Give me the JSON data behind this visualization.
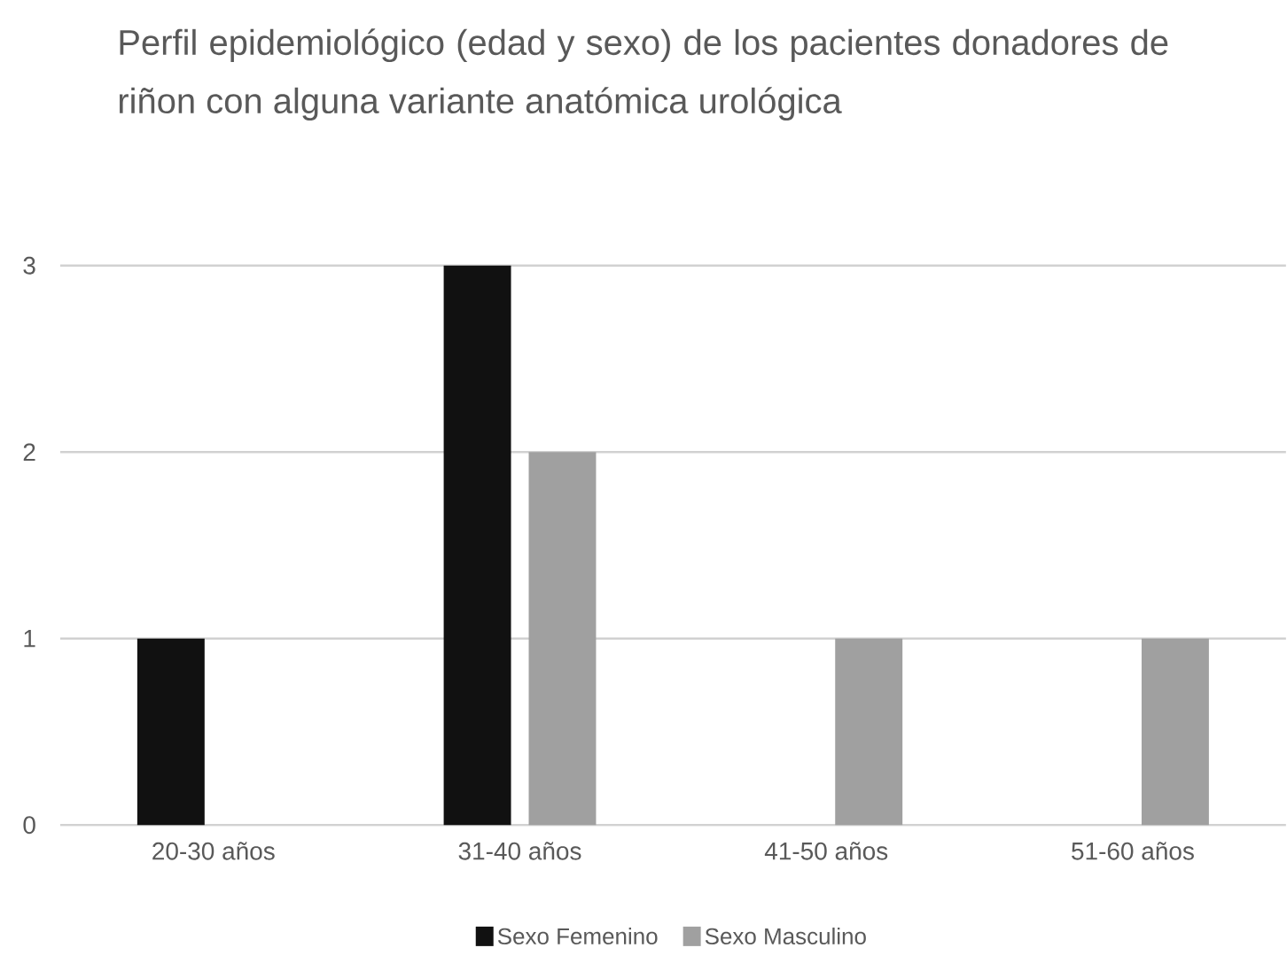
{
  "chart_data": {
    "type": "bar",
    "title": "Perfil epidemiológico (edad y sexo) de los pacientes donadores de riñon con alguna variante anatómica urológica",
    "categories": [
      "20-30 años",
      "31-40 años",
      "41-50 años",
      "51-60 años"
    ],
    "series": [
      {
        "name": "Sexo Femenino",
        "color": "#111111",
        "values": [
          1,
          3,
          0,
          0
        ]
      },
      {
        "name": "Sexo Masculino",
        "color": "#a0a0a0",
        "values": [
          0,
          2,
          1,
          1
        ]
      }
    ],
    "ylim": [
      0,
      3
    ],
    "yticks": [
      0,
      1,
      2,
      3
    ],
    "grid": "y",
    "legend": "bottom"
  }
}
